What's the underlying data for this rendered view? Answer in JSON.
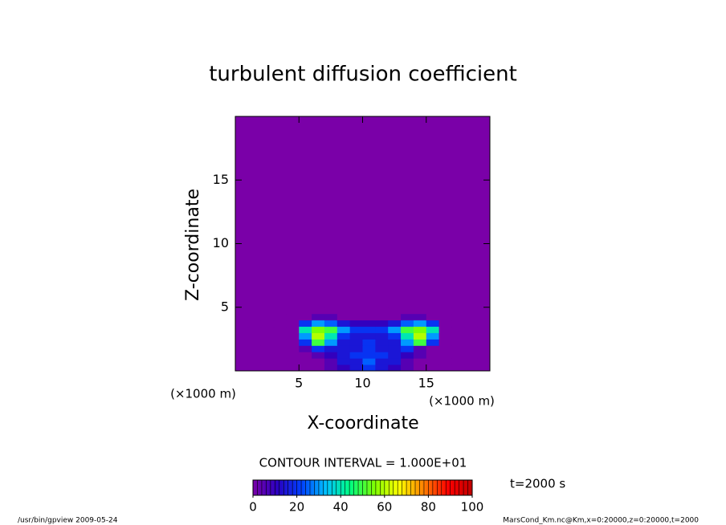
{
  "chart_data": {
    "type": "heatmap",
    "title": "turbulent diffusion coefficient",
    "x_label": "X-coordinate",
    "y_label": "Z-coordinate",
    "x_unit": "(×1000 m)",
    "y_unit": "(×1000 m)",
    "xlim": [
      0,
      20
    ],
    "ylim": [
      0,
      20
    ],
    "xticks": [
      5,
      10,
      15
    ],
    "yticks": [
      5,
      10,
      15
    ],
    "x_edges": [
      0,
      1,
      2,
      3,
      4,
      5,
      6,
      7,
      8,
      9,
      10,
      11,
      12,
      13,
      14,
      15,
      16,
      17,
      18,
      19,
      20
    ],
    "z_edges": [
      0,
      0.5,
      1,
      1.5,
      2,
      2.5,
      3,
      3.5,
      4,
      4.5,
      5,
      20
    ],
    "values": [
      [
        0,
        0,
        0,
        0,
        0,
        0,
        0,
        5,
        10,
        15,
        20,
        15,
        10,
        5,
        0,
        0,
        0,
        0,
        0,
        0
      ],
      [
        0,
        0,
        0,
        0,
        0,
        0,
        0,
        5,
        15,
        15,
        25,
        15,
        15,
        5,
        0,
        0,
        0,
        0,
        0,
        0
      ],
      [
        0,
        0,
        0,
        0,
        0,
        0,
        5,
        10,
        15,
        20,
        20,
        20,
        15,
        10,
        5,
        0,
        0,
        0,
        0,
        0
      ],
      [
        0,
        0,
        0,
        0,
        0,
        5,
        20,
        15,
        15,
        15,
        20,
        15,
        15,
        20,
        5,
        0,
        0,
        0,
        0,
        0
      ],
      [
        0,
        0,
        0,
        0,
        0,
        20,
        50,
        30,
        15,
        15,
        20,
        15,
        15,
        30,
        50,
        20,
        0,
        0,
        0,
        0
      ],
      [
        0,
        0,
        0,
        0,
        0,
        30,
        60,
        40,
        20,
        15,
        15,
        15,
        20,
        40,
        60,
        30,
        0,
        0,
        0,
        0
      ],
      [
        0,
        0,
        0,
        0,
        0,
        40,
        55,
        50,
        30,
        20,
        20,
        20,
        30,
        50,
        55,
        40,
        0,
        0,
        0,
        0
      ],
      [
        0,
        0,
        0,
        0,
        0,
        20,
        30,
        25,
        15,
        10,
        10,
        10,
        15,
        25,
        30,
        20,
        0,
        0,
        0,
        0
      ],
      [
        0,
        0,
        0,
        0,
        0,
        0,
        5,
        5,
        0,
        0,
        0,
        0,
        0,
        5,
        5,
        0,
        0,
        0,
        0,
        0
      ],
      [
        0,
        0,
        0,
        0,
        0,
        0,
        0,
        0,
        0,
        0,
        0,
        0,
        0,
        0,
        0,
        0,
        0,
        0,
        0,
        0
      ],
      [
        0,
        0,
        0,
        0,
        0,
        0,
        0,
        0,
        0,
        0,
        0,
        0,
        0,
        0,
        0,
        0,
        0,
        0,
        0,
        0
      ]
    ],
    "colormap": [
      "#7a00a8",
      "#2a00c0",
      "#0040ff",
      "#00c0ff",
      "#00ff80",
      "#80ff00",
      "#ffff00",
      "#ff8000",
      "#ff0000",
      "#c00000"
    ],
    "colorbar_lim": [
      0,
      100
    ],
    "colorbar_ticks": [
      0,
      20,
      40,
      60,
      80,
      100
    ],
    "contour_note": "CONTOUR INTERVAL = 1.000E+01",
    "time_label": "t=2000 s",
    "footer_left": "/usr/bin/gpview   2009-05-24",
    "footer_right": "MarsCond_Km.nc@Km,x=0:20000,z=0:20000,t=2000"
  }
}
